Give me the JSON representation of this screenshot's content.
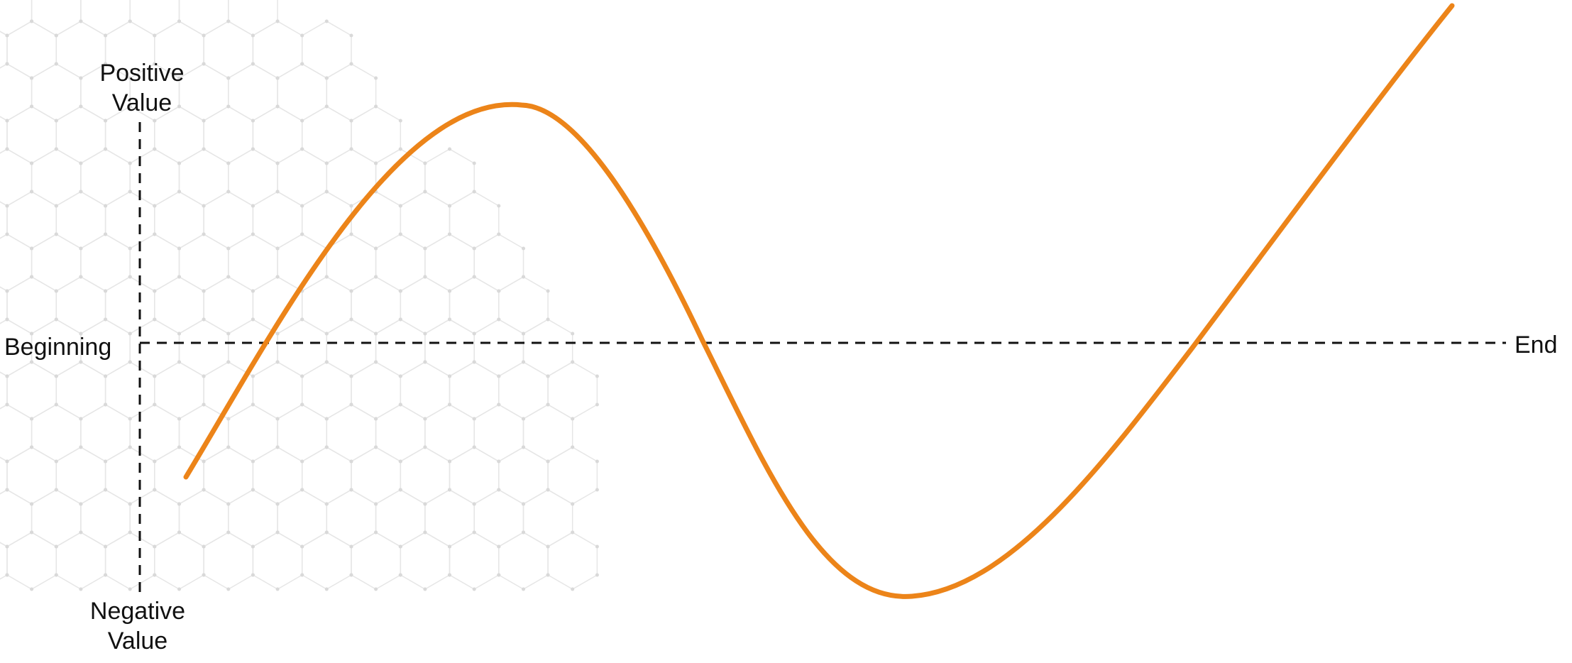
{
  "diagram": {
    "labels": {
      "vertical_top": [
        "Positive",
        "Value"
      ],
      "vertical_bottom": [
        "Negative",
        "Value"
      ],
      "horizontal_left": "Beginning",
      "horizontal_right": "End"
    },
    "colors": {
      "curve": "#EC8419",
      "axes": "#111111",
      "hex_pattern": "#E6E6E6"
    },
    "background_motif": "hexagon-pattern"
  }
}
